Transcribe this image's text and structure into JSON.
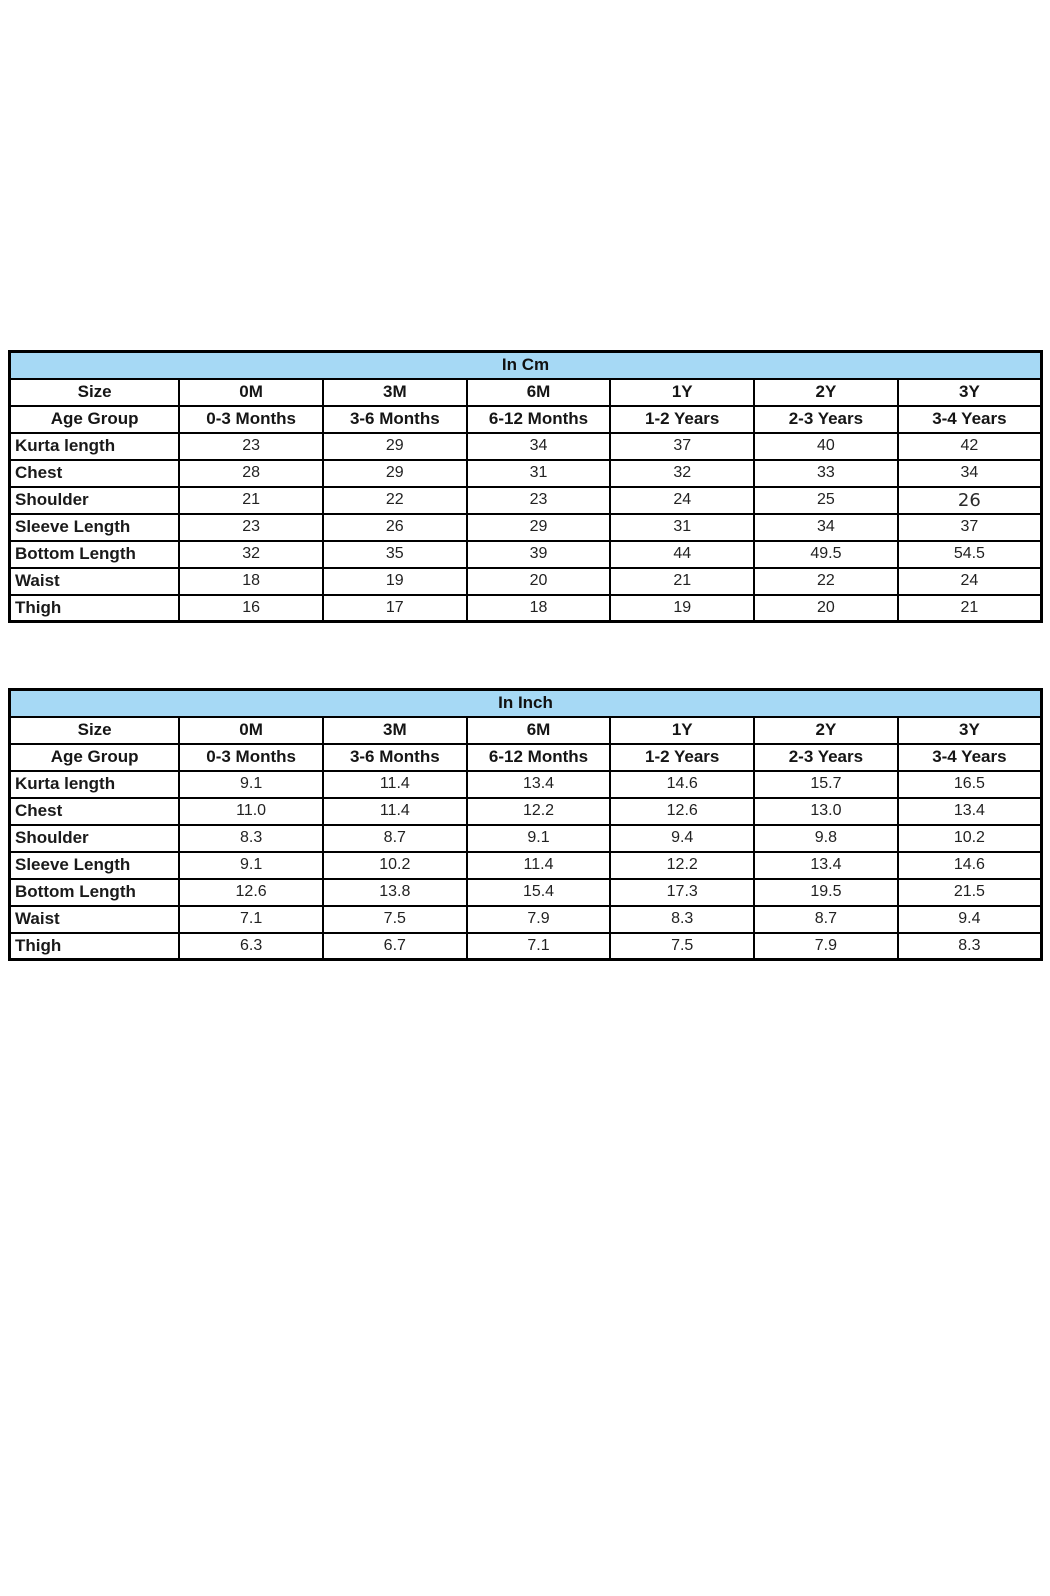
{
  "colors": {
    "header_bg": "#a6d9f5",
    "border": "#000000",
    "text": "#1a1a1a",
    "page_bg": "#ffffff"
  },
  "tables": [
    {
      "title": "In Cm",
      "size_row": {
        "label": "Size",
        "values": [
          "0M",
          "3M",
          "6M",
          "1Y",
          "2Y",
          "3Y"
        ]
      },
      "age_row": {
        "label": "Age Group",
        "values": [
          "0-3 Months",
          "3-6 Months",
          "6-12 Months",
          "1-2 Years",
          "2-3 Years",
          "3-4 Years"
        ]
      },
      "rows": [
        {
          "label": "Kurta length",
          "values": [
            "23",
            "29",
            "34",
            "37",
            "40",
            "42"
          ]
        },
        {
          "label": "Chest",
          "values": [
            "28",
            "29",
            "31",
            "32",
            "33",
            "34"
          ]
        },
        {
          "label": "Shoulder",
          "values": [
            "21",
            "22",
            "23",
            "24",
            "25",
            "26"
          ]
        },
        {
          "label": "Sleeve Length",
          "values": [
            "23",
            "26",
            "29",
            "31",
            "34",
            "37"
          ]
        },
        {
          "label": "Bottom Length",
          "values": [
            "32",
            "35",
            "39",
            "44",
            "49.5",
            "54.5"
          ]
        },
        {
          "label": "Waist",
          "values": [
            "18",
            "19",
            "20",
            "21",
            "22",
            "24"
          ]
        },
        {
          "label": "Thigh",
          "values": [
            "16",
            "17",
            "18",
            "19",
            "20",
            "21"
          ]
        }
      ]
    },
    {
      "title": "In Inch",
      "size_row": {
        "label": "Size",
        "values": [
          "0M",
          "3M",
          "6M",
          "1Y",
          "2Y",
          "3Y"
        ]
      },
      "age_row": {
        "label": "Age Group",
        "values": [
          "0-3 Months",
          "3-6 Months",
          "6-12 Months",
          "1-2 Years",
          "2-3 Years",
          "3-4 Years"
        ]
      },
      "rows": [
        {
          "label": "Kurta length",
          "values": [
            "9.1",
            "11.4",
            "13.4",
            "14.6",
            "15.7",
            "16.5"
          ]
        },
        {
          "label": "Chest",
          "values": [
            "11.0",
            "11.4",
            "12.2",
            "12.6",
            "13.0",
            "13.4"
          ]
        },
        {
          "label": "Shoulder",
          "values": [
            "8.3",
            "8.7",
            "9.1",
            "9.4",
            "9.8",
            "10.2"
          ]
        },
        {
          "label": "Sleeve Length",
          "values": [
            "9.1",
            "10.2",
            "11.4",
            "12.2",
            "13.4",
            "14.6"
          ]
        },
        {
          "label": "Bottom Length",
          "values": [
            "12.6",
            "13.8",
            "15.4",
            "17.3",
            "19.5",
            "21.5"
          ]
        },
        {
          "label": "Waist",
          "values": [
            "7.1",
            "7.5",
            "7.9",
            "8.3",
            "8.7",
            "9.4"
          ]
        },
        {
          "label": "Thigh",
          "values": [
            "6.3",
            "6.7",
            "7.1",
            "7.5",
            "7.9",
            "8.3"
          ]
        }
      ]
    }
  ]
}
